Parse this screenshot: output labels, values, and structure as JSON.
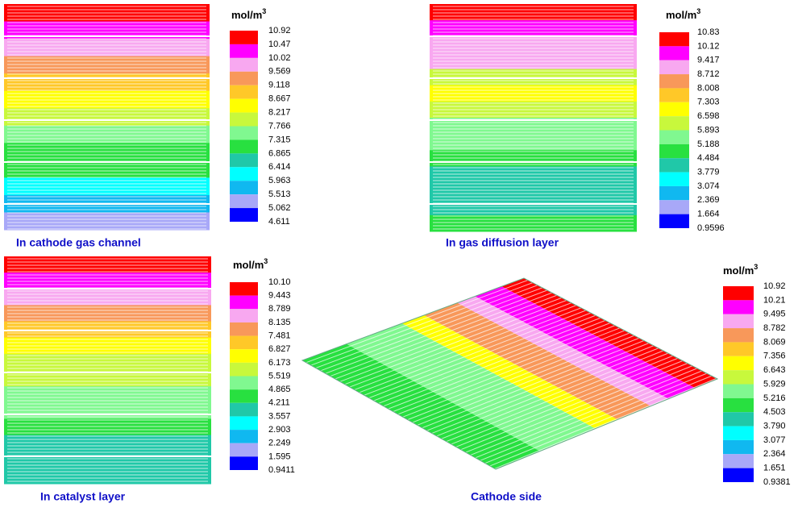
{
  "panels": [
    {
      "caption": "In cathode gas channel",
      "unit": {
        "base": "mol/m",
        "exp": "3"
      },
      "labels": [
        "10.92",
        "10.47",
        "10.02",
        "9.569",
        "9.118",
        "8.667",
        "8.217",
        "7.766",
        "7.315",
        "6.865",
        "6.414",
        "5.963",
        "5.513",
        "5.062",
        "4.611"
      ]
    },
    {
      "caption": "In gas diffusion layer",
      "unit": {
        "base": "mol/m",
        "exp": "3"
      },
      "labels": [
        "10.83",
        "10.12",
        "9.417",
        "8.712",
        "8.008",
        "7.303",
        "6.598",
        "5.893",
        "5.188",
        "4.484",
        "3.779",
        "3.074",
        "2.369",
        "1.664",
        "0.9596"
      ]
    },
    {
      "caption": "In catalyst layer",
      "unit": {
        "base": "mol/m",
        "exp": "3"
      },
      "labels": [
        "10.10",
        "9.443",
        "8.789",
        "8.135",
        "7.481",
        "6.827",
        "6.173",
        "5.519",
        "4.865",
        "4.211",
        "3.557",
        "2.903",
        "2.249",
        "1.595",
        "0.9411"
      ]
    },
    {
      "caption": "Cathode side",
      "unit": {
        "base": "mol/m",
        "exp": "3"
      },
      "labels": [
        "10.92",
        "10.21",
        "9.495",
        "8.782",
        "8.069",
        "7.356",
        "6.643",
        "5.929",
        "5.216",
        "4.503",
        "3.790",
        "3.077",
        "2.364",
        "1.651",
        "0.9381"
      ]
    }
  ],
  "colors": [
    "#ff0000",
    "#ff00ff",
    "#f8a8f0",
    "#f8985a",
    "#ffc828",
    "#ffff00",
    "#c8f83c",
    "#80f890",
    "#28e040",
    "#20c8a8",
    "#00ffff",
    "#10b8f0",
    "#a8a8f8",
    "#0000ff"
  ]
}
